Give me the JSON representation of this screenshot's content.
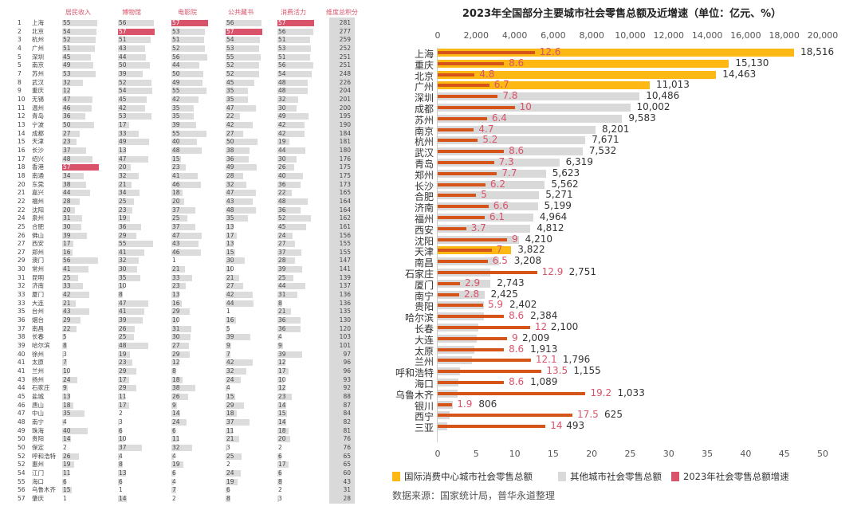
{
  "table": {
    "headers": [
      "居民收入",
      "博物馆",
      "电影院",
      "公共藏书",
      "消费活力",
      "维度总积分"
    ],
    "max_value": 57,
    "highlight_color": "#d9536b",
    "rows": [
      [
        "1",
        "上海",
        55,
        56,
        57,
        56,
        57,
        281
      ],
      [
        "2",
        "北京",
        54,
        57,
        53,
        57,
        56,
        277
      ],
      [
        "3",
        "杭州",
        52,
        51,
        51,
        54,
        51,
        259
      ],
      [
        "4",
        "广州",
        51,
        43,
        52,
        53,
        53,
        252
      ],
      [
        "5",
        "深圳",
        45,
        44,
        56,
        55,
        51,
        251
      ],
      [
        "5",
        "南京",
        49,
        50,
        44,
        52,
        56,
        251
      ],
      [
        "7",
        "苏州",
        53,
        39,
        50,
        52,
        54,
        248
      ],
      [
        "8",
        "武汉",
        32,
        52,
        49,
        45,
        48,
        226
      ],
      [
        "9",
        "重庆",
        12,
        54,
        55,
        35,
        48,
        204
      ],
      [
        "10",
        "无锡",
        47,
        45,
        42,
        35,
        32,
        201
      ],
      [
        "11",
        "温州",
        46,
        42,
        35,
        47,
        30,
        200
      ],
      [
        "12",
        "青岛",
        36,
        53,
        35,
        22,
        49,
        195
      ],
      [
        "13",
        "宁波",
        50,
        17,
        39,
        42,
        42,
        190
      ],
      [
        "14",
        "成都",
        27,
        33,
        55,
        27,
        42,
        184
      ],
      [
        "15",
        "天津",
        23,
        49,
        40,
        50,
        19,
        181
      ],
      [
        "16",
        "长沙",
        37,
        13,
        48,
        38,
        44,
        180
      ],
      [
        "17",
        "绍兴",
        48,
        47,
        15,
        36,
        30,
        176
      ],
      [
        "18",
        "香港",
        57,
        20,
        23,
        49,
        26,
        175
      ],
      [
        "18",
        "南通",
        34,
        32,
        41,
        28,
        40,
        175
      ],
      [
        "20",
        "东莞",
        38,
        21,
        46,
        32,
        36,
        173
      ],
      [
        "21",
        "嘉兴",
        44,
        34,
        18,
        47,
        22,
        165
      ],
      [
        "22",
        "福州",
        28,
        25,
        20,
        43,
        48,
        164
      ],
      [
        "22",
        "沈阳",
        20,
        23,
        37,
        48,
        36,
        164
      ],
      [
        "24",
        "泉州",
        31,
        19,
        25,
        35,
        52,
        162
      ],
      [
        "25",
        "合肥",
        30,
        36,
        37,
        13,
        45,
        161
      ],
      [
        "26",
        "佛山",
        39,
        29,
        47,
        17,
        24,
        156
      ],
      [
        "27",
        "西安",
        17,
        55,
        43,
        13,
        27,
        155
      ],
      [
        "27",
        "郑州",
        16,
        41,
        46,
        15,
        37,
        155
      ],
      [
        "29",
        "澳门",
        56,
        32,
        1,
        30,
        28,
        147
      ],
      [
        "30",
        "常州",
        41,
        30,
        21,
        10,
        39,
        141
      ],
      [
        "31",
        "昆明",
        25,
        35,
        33,
        21,
        25,
        139
      ],
      [
        "32",
        "济南",
        33,
        10,
        23,
        27,
        44,
        137
      ],
      [
        "33",
        "厦门",
        42,
        8,
        13,
        42,
        31,
        136
      ],
      [
        "33",
        "大连",
        21,
        47,
        16,
        44,
        8,
        136
      ],
      [
        "35",
        "台州",
        43,
        41,
        29,
        1,
        21,
        135
      ],
      [
        "36",
        "烟台",
        29,
        39,
        10,
        16,
        36,
        130
      ],
      [
        "37",
        "南昌",
        22,
        26,
        31,
        5,
        36,
        120
      ],
      [
        "38",
        "长春",
        5,
        25,
        30,
        39,
        4,
        103
      ],
      [
        "39",
        "哈尔滨",
        8,
        48,
        27,
        9,
        9,
        101
      ],
      [
        "40",
        "徐州",
        3,
        19,
        29,
        7,
        39,
        97
      ],
      [
        "41",
        "太原",
        7,
        23,
        12,
        42,
        12,
        96
      ],
      [
        "41",
        "兰州",
        10,
        29,
        8,
        32,
        17,
        96
      ],
      [
        "43",
        "扬州",
        24,
        17,
        18,
        24,
        10,
        93
      ],
      [
        "44",
        "石家庄",
        9,
        29,
        38,
        4,
        12,
        92
      ],
      [
        "45",
        "盐城",
        13,
        11,
        26,
        15,
        23,
        88
      ],
      [
        "46",
        "唐山",
        18,
        17,
        9,
        29,
        14,
        87
      ],
      [
        "47",
        "中山",
        35,
        2,
        14,
        18,
        15,
        84
      ],
      [
        "48",
        "南宁",
        4,
        3,
        24,
        37,
        14,
        82
      ],
      [
        "49",
        "珠海",
        40,
        6,
        6,
        11,
        18,
        81
      ],
      [
        "50",
        "贵阳",
        14,
        10,
        11,
        21,
        20,
        76
      ],
      [
        "50",
        "保定",
        2,
        37,
        32,
        3,
        2,
        76
      ],
      [
        "52",
        "呼和浩特",
        26,
        4,
        4,
        25,
        6,
        65
      ],
      [
        "52",
        "惠州",
        19,
        8,
        19,
        2,
        17,
        65
      ],
      [
        "54",
        "江门",
        11,
        13,
        6,
        24,
        6,
        60
      ],
      [
        "55",
        "海口",
        6,
        6,
        4,
        19,
        8,
        43
      ],
      [
        "56",
        "乌鲁木齐",
        15,
        1,
        7,
        6,
        2,
        31
      ],
      [
        "57",
        "肇庆",
        1,
        14,
        2,
        8,
        3,
        28
      ]
    ]
  },
  "chart_data": {
    "type": "bar",
    "title": "2023年全国部分主要城市社会零售总额及近增速（单位：亿元、%）",
    "top_axis": {
      "min": 0,
      "max": 20000,
      "ticks": [
        "0",
        "2,000",
        "4,000",
        "6,000",
        "8,000",
        "10,000",
        "12,000",
        "14,000",
        "16,000",
        "18,000",
        "20,000"
      ]
    },
    "bottom_axis": {
      "min": 0,
      "max": 50,
      "ticks": [
        "0",
        "5",
        "10",
        "15",
        "20",
        "25",
        "30",
        "35",
        "40",
        "45",
        "50"
      ]
    },
    "colors": {
      "intl": "#fdb813",
      "other": "#d9d9d9",
      "growth": "#d4541a",
      "growth_label": "#d9536b"
    },
    "legend": [
      "国际消费中心城市社会零售总额",
      "其他城市社会零售总额",
      "2023年社会零售总额增速"
    ],
    "legend_placement": "bottom",
    "source": "数据来源：国家统计局，普华永道整理",
    "categories": [
      "上海",
      "重庆",
      "北京",
      "广州",
      "深圳",
      "成都",
      "苏州",
      "南京",
      "杭州",
      "武汉",
      "青岛",
      "郑州",
      "长沙",
      "合肥",
      "济南",
      "福州",
      "西安",
      "沈阳",
      "天津",
      "南昌",
      "石家庄",
      "厦门",
      "南宁",
      "贵阳",
      "哈尔滨",
      "长春",
      "大连",
      "太原",
      "兰州",
      "呼和浩特",
      "海口",
      "乌鲁木齐",
      "银川",
      "西宁",
      "三亚"
    ],
    "totals": [
      18516,
      15130,
      14463,
      11013,
      10486,
      10002,
      9583,
      8201,
      7671,
      7532,
      6319,
      5623,
      5562,
      5271,
      5199,
      4964,
      4812,
      4210,
      3822,
      3208,
      2751,
      2743,
      2425,
      2402,
      2384,
      2100,
      2009,
      1913,
      1796,
      1155,
      1089,
      1033,
      806,
      625,
      493
    ],
    "total_labels": [
      "18,516",
      "15,130",
      "14,463",
      "11,013",
      "10,486",
      "10,002",
      "9,583",
      "8,201",
      "7,671",
      "7,532",
      "6,319",
      "5,623",
      "5,562",
      "5,271",
      "5,199",
      "4,964",
      "4,812",
      "4,210",
      "3,822",
      "3,208",
      "2,751",
      "2,743",
      "2,425",
      "2,402",
      "2,384",
      "2,100",
      "2,009",
      "1,913",
      "1,796",
      "1,155",
      "1,089",
      "1,033",
      "806",
      "625",
      "493"
    ],
    "growth": [
      12.6,
      8.6,
      4.8,
      6.7,
      7.8,
      10,
      6.4,
      4.7,
      5.2,
      8.6,
      7.3,
      7.7,
      6.2,
      5,
      6.6,
      6.1,
      3.7,
      9,
      7,
      6.5,
      12.9,
      2.9,
      2.8,
      5.9,
      8.6,
      12,
      9,
      8.6,
      12.1,
      13.5,
      8.6,
      19.2,
      1.9,
      17.5,
      14
    ],
    "growth_labels": [
      "12.6",
      "8.6",
      "4.8",
      "6.7",
      "7.8",
      "10",
      "6.4",
      "4.7",
      "5.2",
      "8.6",
      "7.3",
      "7.7",
      "6.2",
      "5",
      "6.6",
      "6.1",
      "3.7",
      "9",
      "7",
      "6.5",
      "12.9",
      "2.9",
      "2.8",
      "5.9",
      "8.6",
      "12",
      "9",
      "8.6",
      "12.1",
      "13.5",
      "8.6",
      "19.2",
      "1.9",
      "17.5",
      "14"
    ],
    "intl_center": [
      true,
      true,
      true,
      true,
      false,
      false,
      false,
      false,
      false,
      false,
      false,
      false,
      false,
      false,
      false,
      false,
      false,
      false,
      true,
      false,
      false,
      false,
      false,
      false,
      false,
      false,
      false,
      false,
      false,
      false,
      false,
      false,
      false,
      false,
      false
    ]
  }
}
